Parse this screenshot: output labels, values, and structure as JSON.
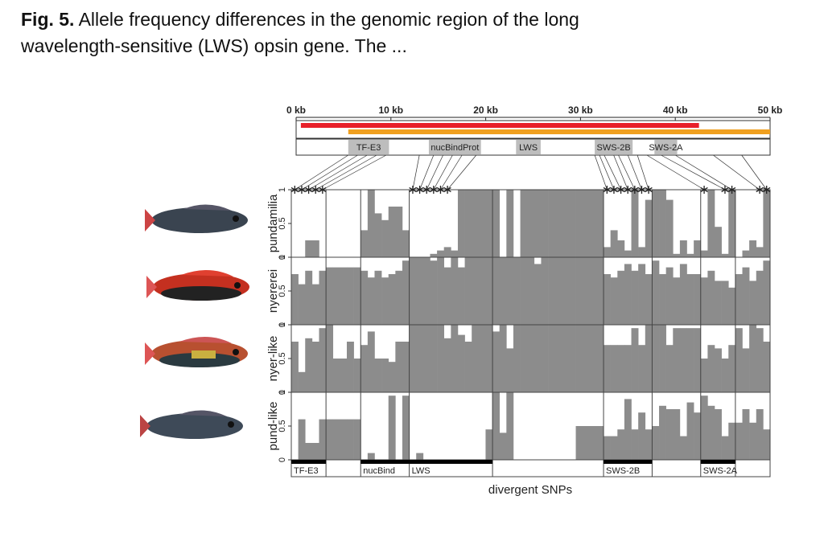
{
  "caption": {
    "label": "Fig. 5.",
    "text": "Allele frequency differences in the genomic region of the long wavelength-sensitive (LWS) opsin gene. The ..."
  },
  "chart_data": {
    "type": "bar",
    "xlabel": "divergent SNPs",
    "xlim": [
      0,
      50
    ],
    "xticks": [
      {
        "value": 0,
        "label": "0 kb"
      },
      {
        "value": 10,
        "label": "10 kb"
      },
      {
        "value": 20,
        "label": "20 kb"
      },
      {
        "value": 30,
        "label": "30 kb"
      },
      {
        "value": 40,
        "label": "40 kb"
      },
      {
        "value": 50,
        "label": "50 kb"
      }
    ],
    "ranges": [
      {
        "color": "#e8202a",
        "start": 0.5,
        "end": 42.5
      },
      {
        "color": "#f0a020",
        "start": 5.5,
        "end": 50
      }
    ],
    "genes": [
      {
        "label": "TF-E3",
        "start": 5.5,
        "end": 9.8
      },
      {
        "label": "nucBindProt",
        "start": 14,
        "end": 19.5
      },
      {
        "label": "LWS",
        "start": 23.2,
        "end": 25.8
      },
      {
        "label": "SWS-2B",
        "start": 31.5,
        "end": 35.5
      },
      {
        "label": "SWS-2A",
        "start": 37.8,
        "end": 40.2
      }
    ],
    "ylim": [
      0,
      1
    ],
    "yticks": [
      0,
      0.5,
      1
    ],
    "snp_groups": [
      {
        "label": "TF-E3",
        "count": 5
      },
      {
        "label": null,
        "count": 5
      },
      {
        "label": "nucBind",
        "count": 7
      },
      {
        "label": "LWS",
        "count": 12
      },
      {
        "label": null,
        "count": 16
      },
      {
        "label": "SWS-2B",
        "count": 7
      },
      {
        "label": null,
        "count": 7
      },
      {
        "label": "SWS-2A",
        "count": 5
      },
      {
        "label": null,
        "count": 5
      }
    ],
    "links": [
      {
        "snp": 0,
        "kb": 5.5
      },
      {
        "snp": 1,
        "kb": 6.5
      },
      {
        "snp": 2,
        "kb": 7.5
      },
      {
        "snp": 3,
        "kb": 8.5
      },
      {
        "snp": 4,
        "kb": 9.5
      },
      {
        "snp": 17,
        "kb": 13
      },
      {
        "snp": 18,
        "kb": 14.5
      },
      {
        "snp": 19,
        "kb": 15.5
      },
      {
        "snp": 20,
        "kb": 16.5
      },
      {
        "snp": 21,
        "kb": 17.5
      },
      {
        "snp": 22,
        "kb": 19
      },
      {
        "snp": 45,
        "kb": 31.5
      },
      {
        "snp": 46,
        "kb": 32
      },
      {
        "snp": 47,
        "kb": 32.5
      },
      {
        "snp": 48,
        "kb": 33.5
      },
      {
        "snp": 49,
        "kb": 34
      },
      {
        "snp": 50,
        "kb": 35
      },
      {
        "snp": 51,
        "kb": 36
      },
      {
        "snp": 59,
        "kb": 37
      },
      {
        "snp": 62,
        "kb": 38.5
      },
      {
        "snp": 63,
        "kb": 40
      },
      {
        "snp": 67,
        "kb": 44
      },
      {
        "snp": 68,
        "kb": 47
      }
    ],
    "series": [
      {
        "name": "pundamilia",
        "color": "#8c8c8c",
        "values": [
          0,
          0,
          0.25,
          0.25,
          0,
          0,
          0,
          0,
          0,
          0,
          0.4,
          1,
          0.65,
          0.55,
          0.75,
          0.75,
          0.4,
          0,
          0,
          0,
          0.05,
          0.1,
          0.15,
          0.1,
          1,
          1,
          1,
          1,
          1,
          1,
          0,
          1,
          0,
          1,
          1,
          1,
          1,
          1,
          1,
          1,
          1,
          1,
          1,
          1,
          1,
          0.15,
          0.4,
          0.25,
          0.1,
          1,
          0.15,
          0.85,
          1,
          1,
          0.85,
          0.05,
          0.25,
          0.05,
          0.25,
          0.1,
          1,
          0.45,
          0.05,
          1,
          0,
          0.1,
          0.25,
          0.15,
          1
        ]
      },
      {
        "name": "nyererei",
        "color": "#8c8c8c",
        "values": [
          0.75,
          0.6,
          0.8,
          0.6,
          0.8,
          0.85,
          0.85,
          0.85,
          0.85,
          0.85,
          0.8,
          0.7,
          0.8,
          0.7,
          0.75,
          0.8,
          0.95,
          1,
          1,
          1,
          0.95,
          1,
          0.85,
          1,
          0.85,
          1,
          1,
          1,
          1,
          1,
          1,
          1,
          1,
          1,
          1,
          0.9,
          1,
          1,
          1,
          1,
          1,
          1,
          1,
          1,
          1,
          0.75,
          0.7,
          0.8,
          0.9,
          0.8,
          0.9,
          0.75,
          0.95,
          0.75,
          0.85,
          0.7,
          0.9,
          0.75,
          0.75,
          0.7,
          0.8,
          0.65,
          0.65,
          0.55,
          0.75,
          0.85,
          0.65,
          0.8,
          0.95
        ]
      },
      {
        "name": "nyer-like",
        "color": "#8c8c8c",
        "values": [
          0.75,
          0.3,
          0.8,
          0.75,
          0.95,
          1,
          0.5,
          0.5,
          0.75,
          0.5,
          0.7,
          0.9,
          0.5,
          0.5,
          0.45,
          0.75,
          0.75,
          1,
          1,
          1,
          1,
          1,
          0.8,
          1,
          0.85,
          0.75,
          1,
          1,
          1,
          0.9,
          1,
          0.65,
          1,
          1,
          1,
          1,
          1,
          1,
          1,
          1,
          1,
          1,
          1,
          1,
          1,
          0.7,
          0.7,
          0.7,
          0.7,
          0.95,
          0.7,
          1,
          1,
          1,
          0.7,
          0.95,
          0.95,
          0.95,
          0.95,
          0.5,
          0.7,
          0.65,
          0.5,
          0.7,
          0.95,
          0.65,
          1,
          0.95,
          0.75
        ]
      },
      {
        "name": "pund-like",
        "color": "#8c8c8c",
        "values": [
          0,
          0.6,
          0.25,
          0.25,
          0.6,
          0.6,
          0.6,
          0.6,
          0.6,
          0.6,
          0,
          0.1,
          0,
          0,
          0.95,
          0,
          0.95,
          0,
          0.1,
          0,
          0,
          0,
          0,
          0,
          0,
          0,
          0,
          0,
          0.45,
          1,
          0.4,
          1,
          0,
          0,
          0,
          0,
          0,
          0,
          0,
          0,
          0,
          0.5,
          0.5,
          0.5,
          0.5,
          0.35,
          0.35,
          0.45,
          0.9,
          0.45,
          0.7,
          0.45,
          0.5,
          0.8,
          0.75,
          0.75,
          0.35,
          0.85,
          0.7,
          0.95,
          0.8,
          0.75,
          0.35,
          0.55,
          0.55,
          0.75,
          0.55,
          0.75,
          0.45
        ]
      }
    ]
  }
}
